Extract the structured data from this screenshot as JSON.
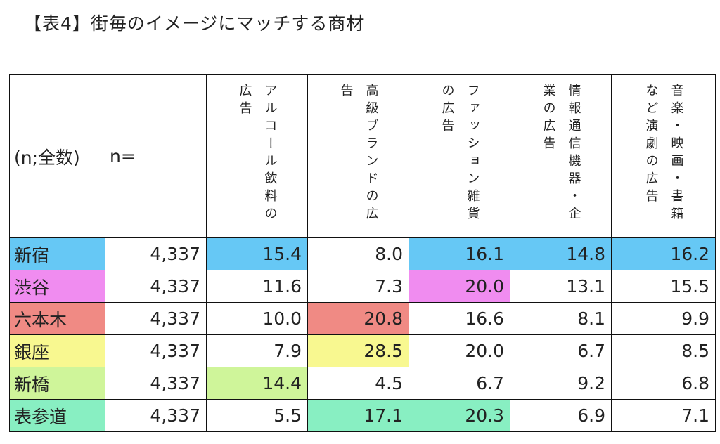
{
  "title": "【表4】街毎のイメージにマッチする商材",
  "header": {
    "label_col": "(n;全数)",
    "n_col": "n=",
    "categories": [
      "アルコール飲料の広告",
      "高級ブランドの広告",
      "ファッション雑貨の広告",
      "情報通信機器・企業の広告",
      "音楽・映画・書籍など演劇の広告"
    ]
  },
  "colors": {
    "blue": "#66c8f5",
    "pink": "#f08cf0",
    "salmon": "#f08a84",
    "yellow": "#f8f890",
    "lime": "#cff59a",
    "mint": "#88efc2"
  },
  "rows": [
    {
      "name": "新宿",
      "n": "4,337",
      "values": [
        "15.4",
        "8.0",
        "16.1",
        "14.8",
        "16.2"
      ]
    },
    {
      "name": "渋谷",
      "n": "4,337",
      "values": [
        "11.6",
        "7.3",
        "20.0",
        "13.1",
        "15.5"
      ]
    },
    {
      "name": "六本木",
      "n": "4,337",
      "values": [
        "10.0",
        "20.8",
        "16.6",
        "8.1",
        "9.9"
      ]
    },
    {
      "name": "銀座",
      "n": "4,337",
      "values": [
        "7.9",
        "28.5",
        "20.0",
        "6.7",
        "8.5"
      ]
    },
    {
      "name": "新橋",
      "n": "4,337",
      "values": [
        "14.4",
        "4.5",
        "6.7",
        "9.2",
        "6.8"
      ]
    },
    {
      "name": "表参道",
      "n": "4,337",
      "values": [
        "5.5",
        "17.1",
        "20.3",
        "6.9",
        "7.1"
      ]
    }
  ]
}
